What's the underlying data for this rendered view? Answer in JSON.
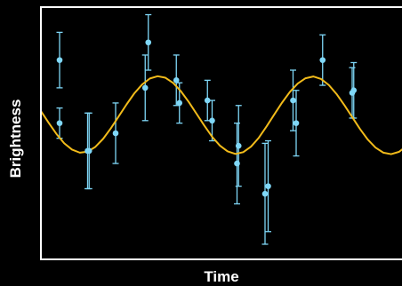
{
  "chart_data": {
    "type": "scatter",
    "title": "",
    "xlabel": "Time",
    "ylabel": "Brightness",
    "xlim": [
      0,
      12
    ],
    "ylim": [
      0,
      10
    ],
    "grid": false,
    "ticks": false,
    "colors": {
      "background": "#000000",
      "frame": "#ffffff",
      "points": "#7fd7f7",
      "curve": "#f2bb1a"
    },
    "series": [
      {
        "kind": "measurements",
        "x": [
          0.6,
          0.6,
          1.5,
          1.55,
          2.4,
          3.35,
          3.45,
          4.35,
          4.45,
          5.35,
          5.5,
          6.3,
          6.35,
          7.2,
          7.3,
          8.1,
          8.2,
          9.05,
          10.0,
          10.05
        ],
        "y": [
          7.9,
          5.4,
          4.3,
          4.3,
          5.0,
          6.8,
          8.6,
          7.1,
          6.2,
          6.3,
          5.5,
          3.8,
          4.5,
          2.6,
          2.9,
          6.3,
          5.4,
          7.9,
          6.6,
          6.7
        ],
        "yerr": [
          1.1,
          0.6,
          1.5,
          1.5,
          1.2,
          1.3,
          1.1,
          1.0,
          0.8,
          0.8,
          0.8,
          1.6,
          1.6,
          2.0,
          1.8,
          1.2,
          1.3,
          1.0,
          1.0,
          1.1
        ]
      },
      {
        "kind": "model",
        "x": [
          0.0,
          0.25,
          0.5,
          0.75,
          1.0,
          1.25,
          1.5,
          1.75,
          2.0,
          2.25,
          2.5,
          2.75,
          3.0,
          3.25,
          3.5,
          3.75,
          4.0,
          4.25,
          4.5,
          4.75,
          5.0,
          5.25,
          5.5,
          5.75,
          6.0,
          6.25,
          6.5,
          6.75,
          7.0,
          7.25,
          7.5,
          7.75,
          8.0,
          8.25,
          8.5,
          8.75,
          9.0,
          9.25,
          9.5,
          9.75,
          10.0,
          10.25,
          10.5,
          10.75,
          11.0,
          11.25,
          11.5,
          11.75,
          12.0
        ],
        "y": [
          5.88,
          5.41,
          4.97,
          4.6,
          4.35,
          4.23,
          4.27,
          4.46,
          4.78,
          5.2,
          5.67,
          6.14,
          6.58,
          6.93,
          7.17,
          7.26,
          7.2,
          6.99,
          6.66,
          6.24,
          5.77,
          5.3,
          4.86,
          4.51,
          4.28,
          4.18,
          4.25,
          4.47,
          4.82,
          5.27,
          5.75,
          6.22,
          6.64,
          6.97,
          7.18,
          7.25,
          7.15,
          6.91,
          6.55,
          6.11,
          5.64,
          5.17,
          4.75,
          4.43,
          4.23,
          4.17,
          4.26,
          4.49,
          4.85
        ]
      }
    ]
  }
}
